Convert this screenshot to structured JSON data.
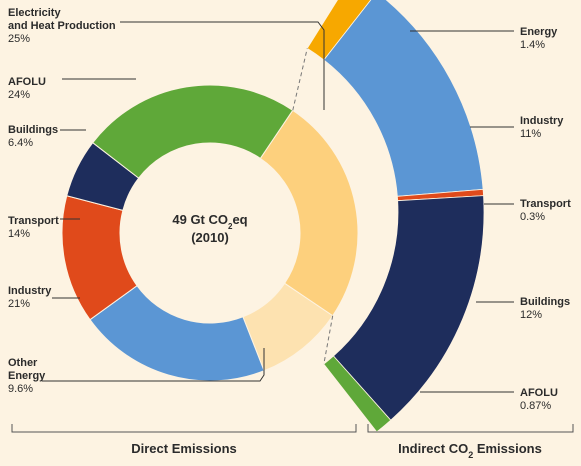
{
  "chart_data": [
    {
      "type": "pie",
      "center_label": {
        "line1_pre": "49 Gt CO",
        "line1_sub": "2",
        "line1_post": "eq",
        "line2": "(2010)"
      },
      "footer": "Direct Emissions",
      "slices": [
        {
          "key": "electricity",
          "name": "Electricity and Heat Production",
          "name_lines": [
            "Electricity",
            "and Heat Production"
          ],
          "value_label": "25%",
          "value": 25,
          "color": "#fdd07d"
        },
        {
          "key": "other_energy",
          "name": "Other Energy",
          "name_lines": [
            "Other",
            "Energy"
          ],
          "value_label": "9.6%",
          "value": 9.6,
          "color": "#fde2b0"
        },
        {
          "key": "industry",
          "name": "Industry",
          "name_lines": [
            "Industry"
          ],
          "value_label": "21%",
          "value": 21,
          "color": "#5b96d4"
        },
        {
          "key": "transport",
          "name": "Transport",
          "name_lines": [
            "Transport"
          ],
          "value_label": "14%",
          "value": 14,
          "color": "#e04a1b"
        },
        {
          "key": "buildings",
          "name": "Buildings",
          "name_lines": [
            "Buildings"
          ],
          "value_label": "6.4%",
          "value": 6.4,
          "color": "#1e2d5c"
        },
        {
          "key": "afolu",
          "name": "AFOLU",
          "name_lines": [
            "AFOLU"
          ],
          "value_label": "24%",
          "value": 24,
          "color": "#5fa839"
        }
      ]
    },
    {
      "type": "pie",
      "footer_pre": "Indirect CO",
      "footer_sub": "2",
      "footer_post": " Emissions",
      "slices": [
        {
          "key": "energy",
          "name": "Energy",
          "value_label": "1.4%",
          "value": 1.4,
          "color": "#f7a800"
        },
        {
          "key": "industry",
          "name": "Industry",
          "value_label": "11%",
          "value": 11,
          "color": "#5b96d4"
        },
        {
          "key": "transport",
          "name": "Transport",
          "value_label": "0.3%",
          "value": 0.3,
          "color": "#e04a1b"
        },
        {
          "key": "buildings",
          "name": "Buildings",
          "value_label": "12%",
          "value": 12,
          "color": "#1e2d5c"
        },
        {
          "key": "afolu",
          "name": "AFOLU",
          "value_label": "0.87%",
          "value": 0.87,
          "color": "#5fa839"
        }
      ]
    }
  ]
}
